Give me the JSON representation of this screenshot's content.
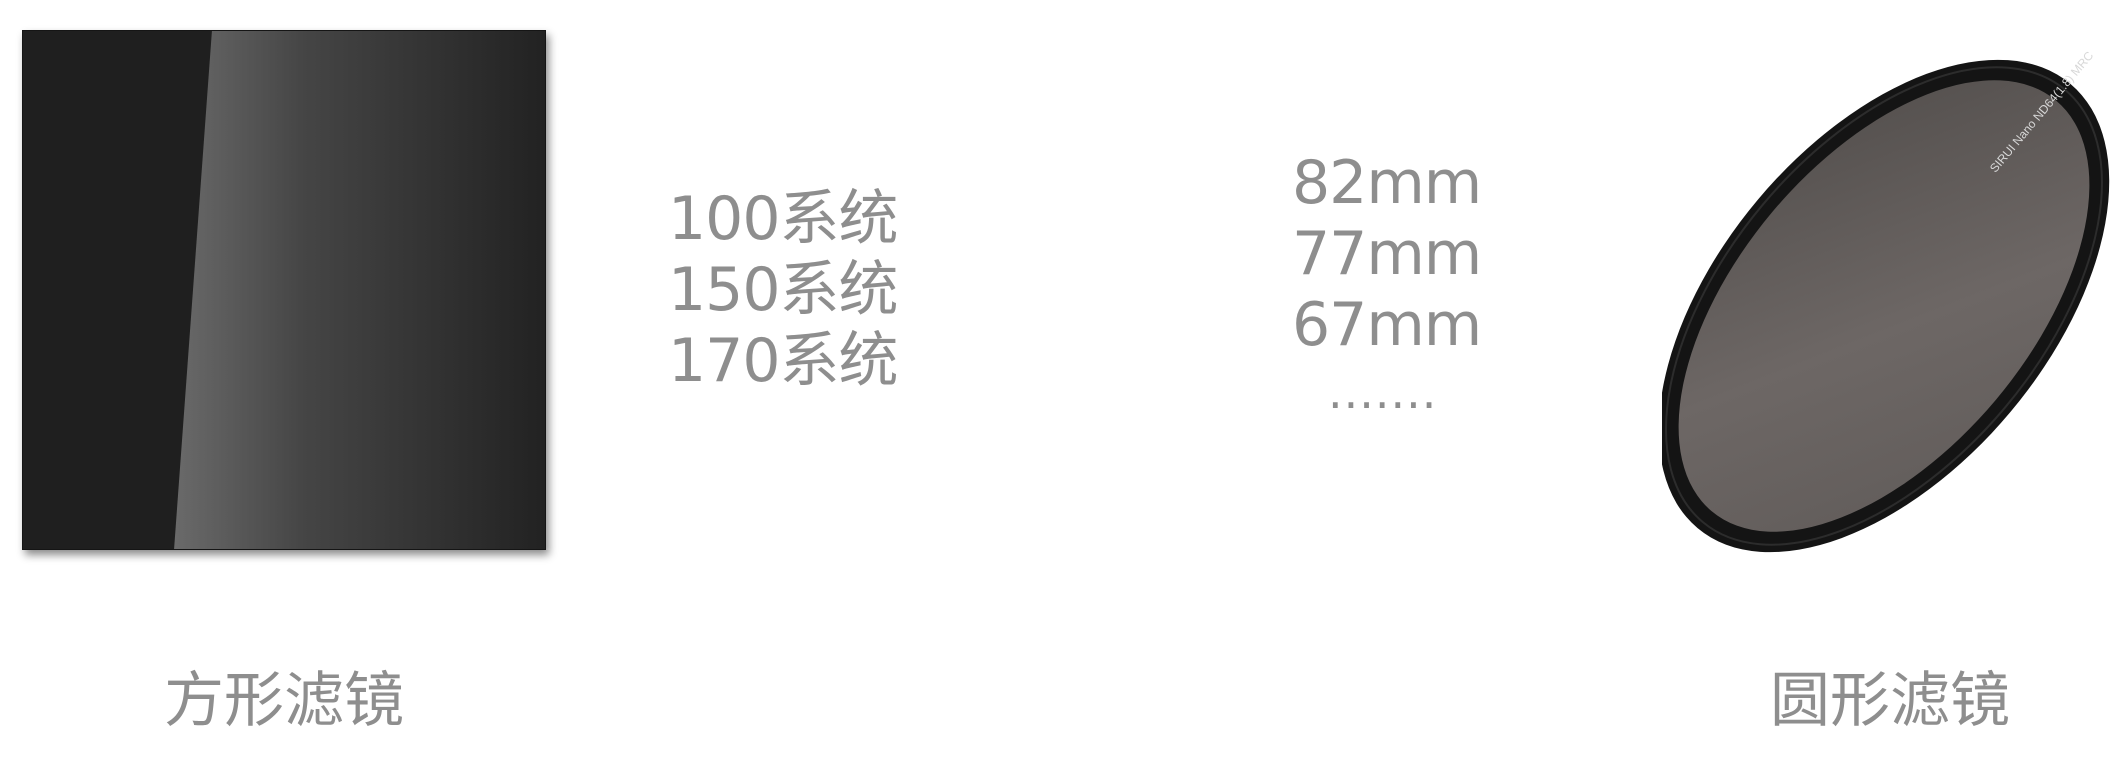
{
  "square_filter": {
    "sizes": [
      "100系统",
      "150系统",
      "170系统"
    ],
    "caption": "方形滤镜"
  },
  "round_filter": {
    "sizes": [
      "82mm",
      "77mm",
      "67mm"
    ],
    "more": ".......",
    "caption": "圆形滤镜",
    "ring_text": "SIRUI  Nano  ND64(1.8)  MRC"
  },
  "colors": {
    "text_gray": "#8e8e8e",
    "filter_dark": "#1f1f1f",
    "glass_gray": "#5a5553"
  }
}
